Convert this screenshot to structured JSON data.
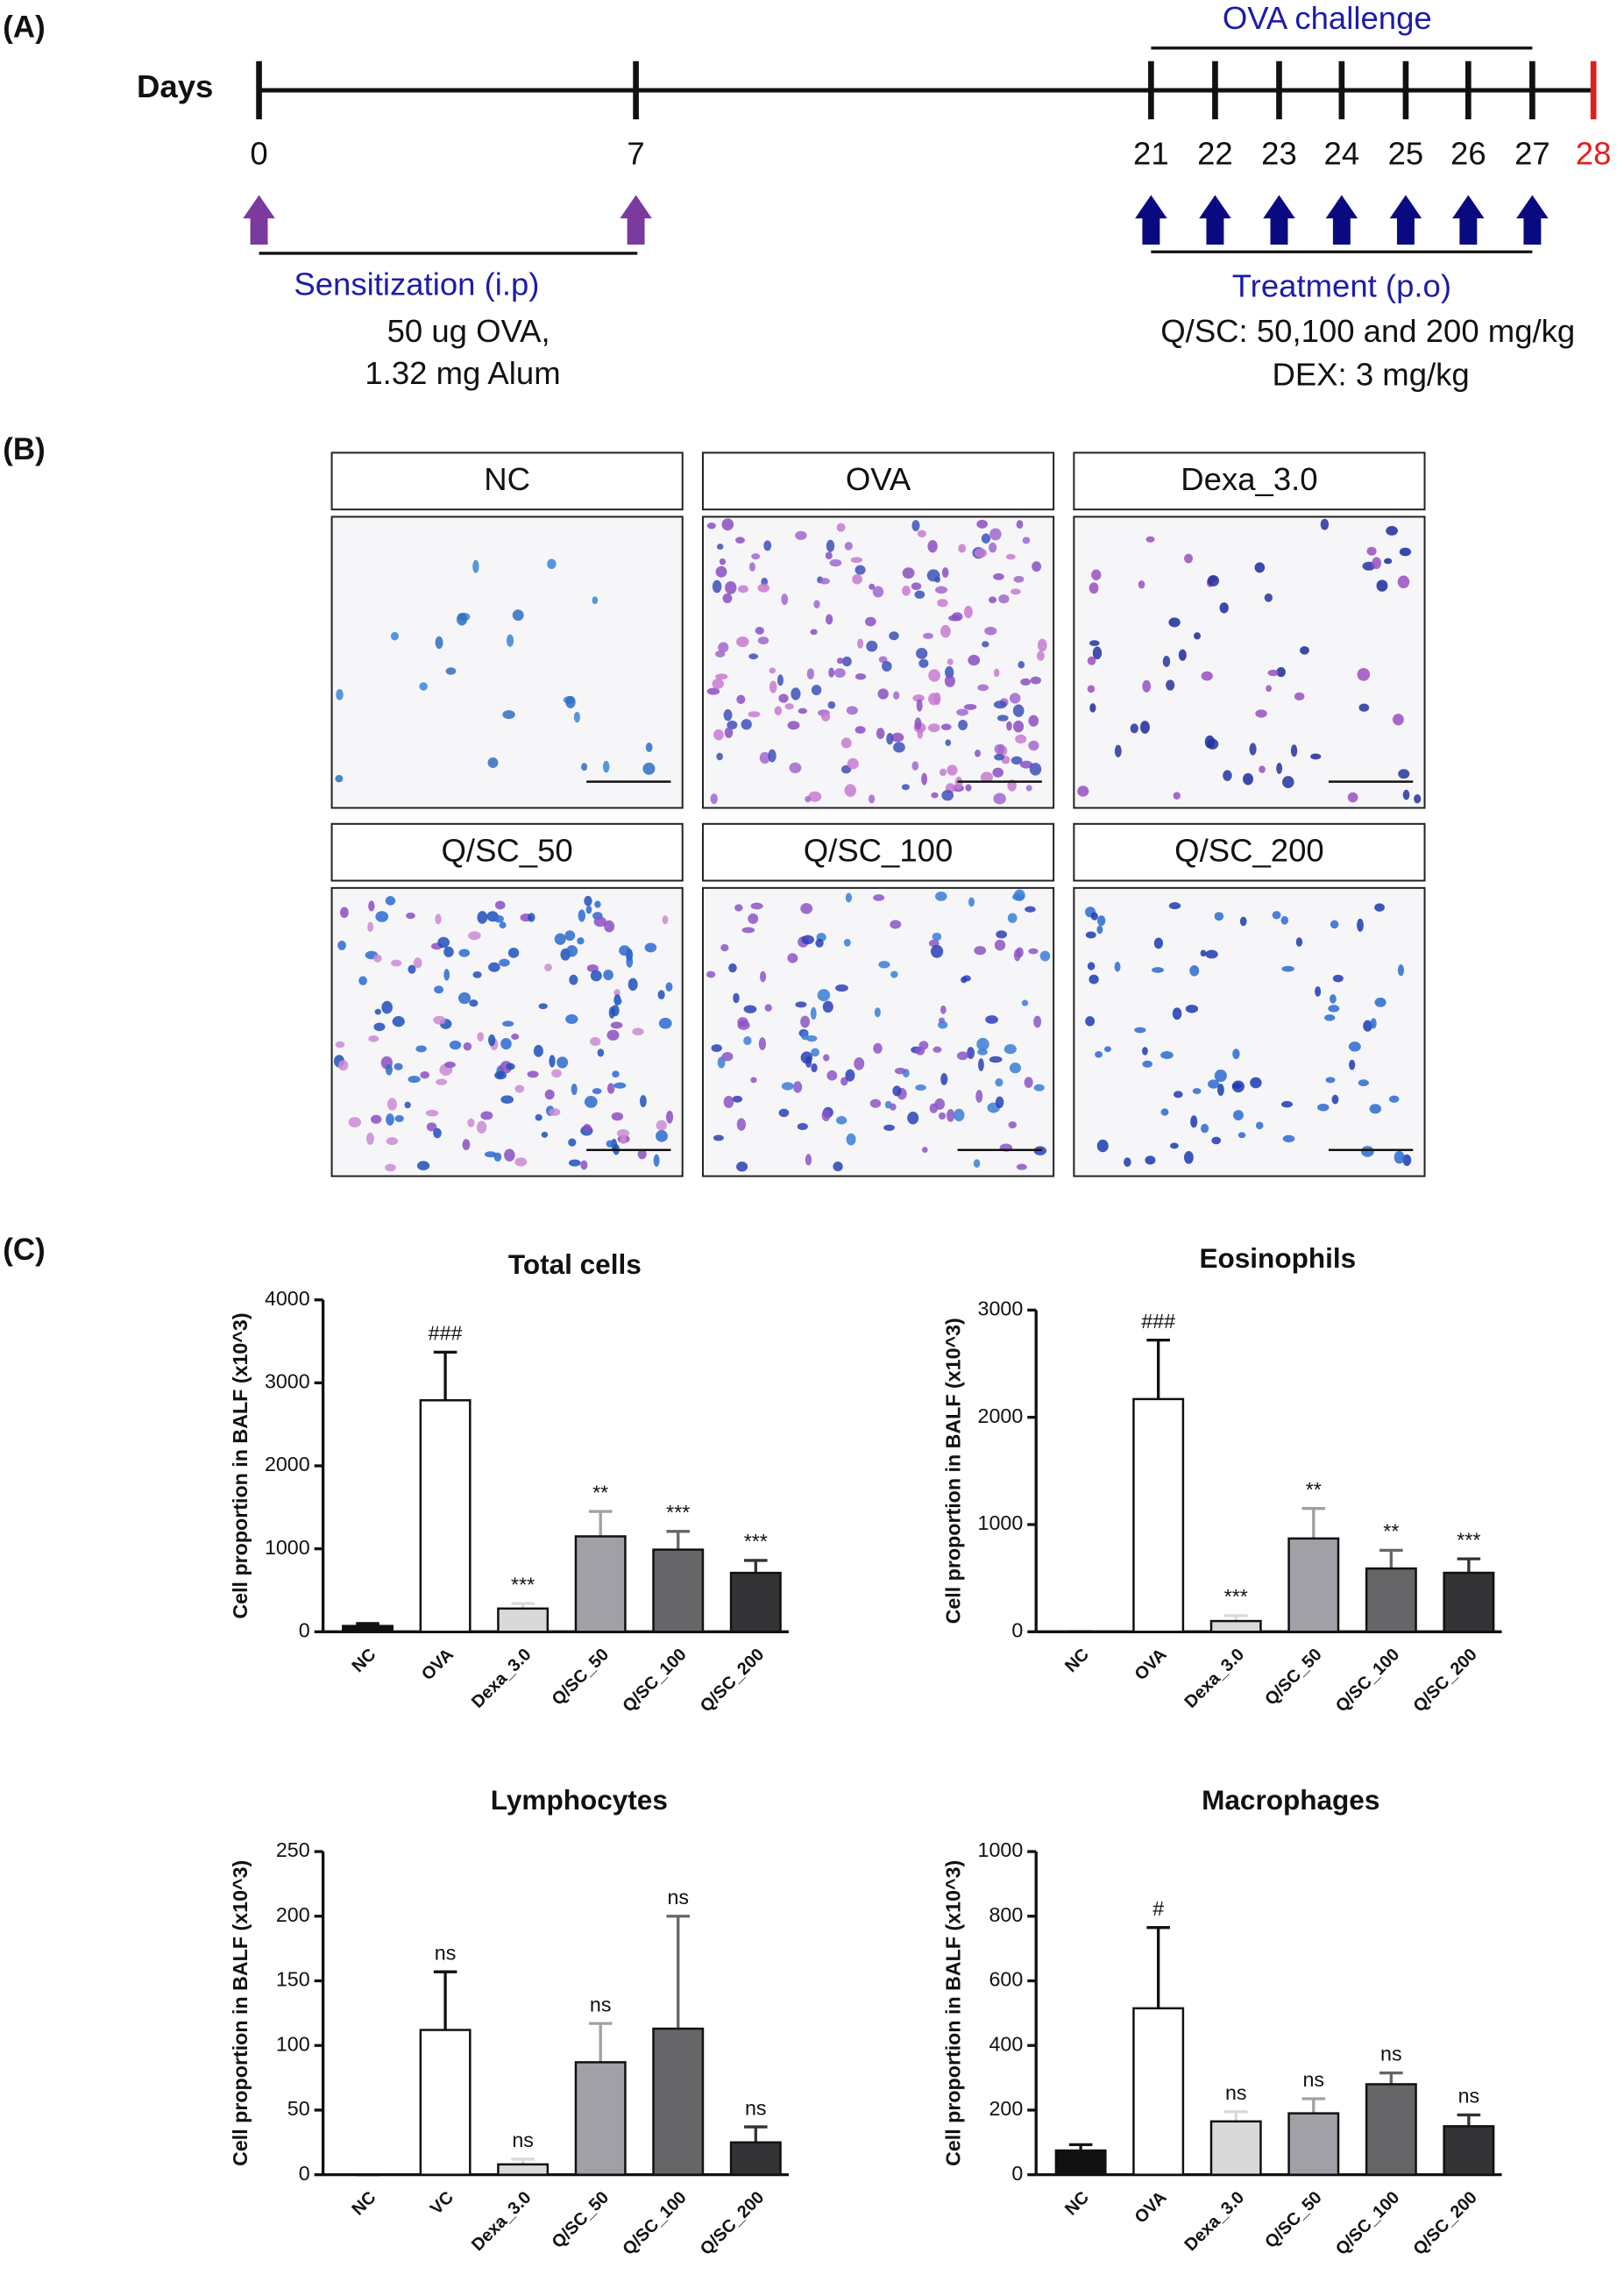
{
  "panel_a": {
    "label": "(A)",
    "days_label": "Days",
    "days": [
      0,
      7,
      21,
      22,
      23,
      24,
      25,
      26,
      27,
      28
    ],
    "challenge": "OVA challenge",
    "sensitization": "Sensitization (i.p)",
    "sensitization_dose": [
      "50 ug OVA,",
      "1.32 mg Alum"
    ],
    "treatment": "Treatment (p.o)",
    "treatment_dose": [
      "Q/SC: 50,100 and 200 mg/kg",
      "DEX: 3 mg/kg"
    ]
  },
  "panel_b": {
    "label": "(B)",
    "panels": [
      "NC",
      "OVA",
      "Dexa_3.0",
      "Q/SC_50",
      "Q/SC_100",
      "Q/SC_200"
    ]
  },
  "panel_c": {
    "label": "(C)"
  },
  "chart_data": [
    {
      "type": "bar",
      "title": "Total cells",
      "ylabel": "Cell proportion in BALF (x10^3)",
      "categories": [
        "NC",
        "OVA",
        "Dexa_3.0",
        "Q/SC_50",
        "Q/SC_100",
        "Q/SC_200"
      ],
      "values": [
        70,
        2790,
        280,
        1150,
        990,
        710
      ],
      "errors": [
        30,
        580,
        60,
        300,
        220,
        150
      ],
      "annotations": [
        null,
        "###",
        "***",
        "**",
        "***",
        "***"
      ],
      "colors": [
        "#111111",
        "#ffffff",
        "#d9d9d9",
        "#a0a0a6",
        "#666668",
        "#333335"
      ],
      "ylim": [
        0,
        4000
      ],
      "yticks": [
        0,
        1000,
        2000,
        3000,
        4000
      ]
    },
    {
      "type": "bar",
      "title": "Eosinophils",
      "ylabel": "Cell proportion in BALF (x10^3)",
      "categories": [
        "NC",
        "OVA",
        "Dexa_3.0",
        "Q/SC_50",
        "Q/SC_100",
        "Q/SC_200"
      ],
      "values": [
        0,
        2170,
        100,
        870,
        590,
        550
      ],
      "errors": [
        0,
        550,
        50,
        280,
        170,
        130
      ],
      "annotations": [
        null,
        "###",
        "***",
        "**",
        "**",
        "***"
      ],
      "colors": [
        "#111111",
        "#ffffff",
        "#d9d9d9",
        "#a0a0a6",
        "#666668",
        "#333335"
      ],
      "ylim": [
        0,
        3000
      ],
      "yticks": [
        0,
        1000,
        2000,
        3000
      ]
    },
    {
      "type": "bar",
      "title": "Lymphocytes",
      "ylabel": "Cell proportion in BALF (x10^3)",
      "categories": [
        "NC",
        "VC",
        "Dexa_3.0",
        "Q/SC_50",
        "Q/SC_100",
        "Q/SC_200"
      ],
      "values": [
        0,
        112,
        8,
        87,
        113,
        25
      ],
      "errors": [
        0,
        45,
        4,
        30,
        87,
        12
      ],
      "annotations": [
        null,
        "ns",
        "ns",
        "ns",
        "ns",
        "ns"
      ],
      "colors": [
        "#111111",
        "#ffffff",
        "#d9d9d9",
        "#a0a0a6",
        "#666668",
        "#333335"
      ],
      "ylim": [
        0,
        250
      ],
      "yticks": [
        0,
        50,
        100,
        150,
        200,
        250
      ]
    },
    {
      "type": "bar",
      "title": "Macrophages",
      "ylabel": "Cell proportion in BALF (x10^3)",
      "categories": [
        "NC",
        "OVA",
        "Dexa_3.0",
        "Q/SC_50",
        "Q/SC_100",
        "Q/SC_200"
      ],
      "values": [
        75,
        515,
        165,
        190,
        280,
        150
      ],
      "errors": [
        18,
        250,
        30,
        45,
        35,
        35
      ],
      "annotations": [
        null,
        "#",
        "ns",
        "ns",
        "ns",
        "ns"
      ],
      "colors": [
        "#111111",
        "#ffffff",
        "#d9d9d9",
        "#a0a0a6",
        "#666668",
        "#333335"
      ],
      "ylim": [
        0,
        1000
      ],
      "yticks": [
        0,
        200,
        400,
        600,
        800,
        1000
      ]
    }
  ]
}
